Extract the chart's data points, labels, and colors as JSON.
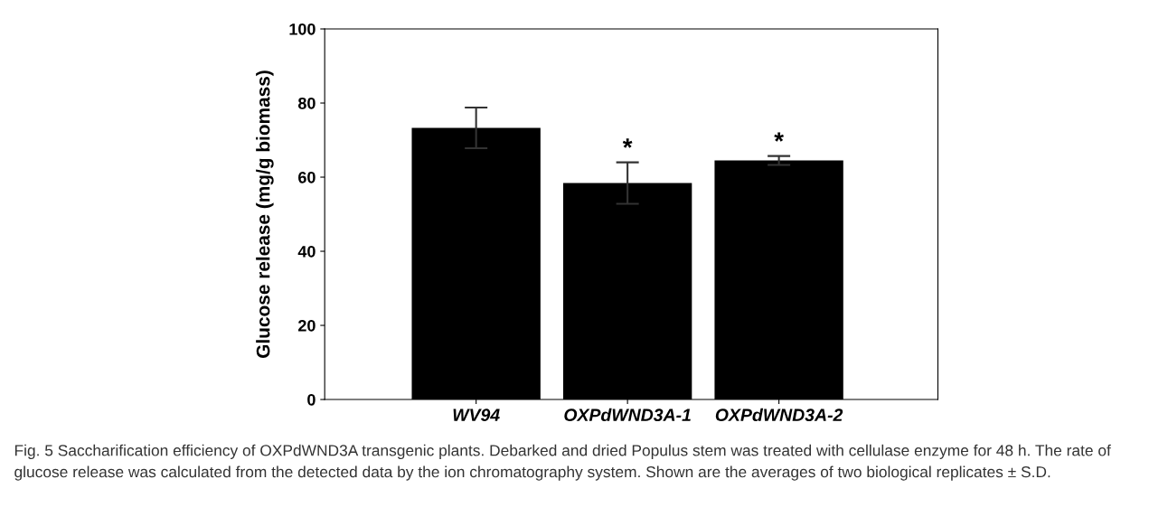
{
  "chart_data": {
    "type": "bar",
    "ylabel": "Glucose release (mg/g biomass)",
    "categories": [
      "WV94",
      "OXPdWND3A-1",
      "OXPdWND3A-2"
    ],
    "values": [
      73.3,
      58.4,
      64.5
    ],
    "errors": [
      5.5,
      5.6,
      1.2
    ],
    "color": "#000000",
    "ylim": [
      0,
      100
    ],
    "yticks": [
      0,
      20,
      40,
      60,
      80,
      100
    ],
    "grid": false,
    "legend": false,
    "annotations": [
      "*",
      "*",
      "Fig. 5 Saccharification efficiency of OXPdWND3A transgenic plants. Debarked and dried Populus stem was treated with cellulase enzyme for 48 h. The rate of glucose release was calculated from the detected data by the ion chromatography system. Shown are the averages of two biological replicates ± S.D."
    ]
  }
}
